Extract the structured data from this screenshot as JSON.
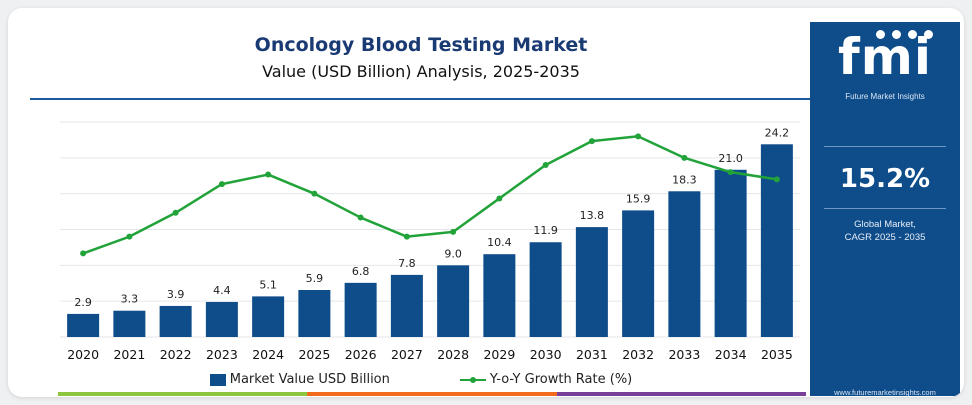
{
  "chart_data": {
    "type": "bar",
    "title": "Oncology Blood Testing Market",
    "subtitle": "Value (USD Billion) Analysis, 2025-2035",
    "categories": [
      "2020",
      "2021",
      "2022",
      "2023",
      "2024",
      "2025",
      "2026",
      "2027",
      "2028",
      "2029",
      "2030",
      "2031",
      "2032",
      "2033",
      "2034",
      "2035"
    ],
    "series": [
      {
        "name": "Market Value USD Billion",
        "type": "bar",
        "values": [
          2.9,
          3.3,
          3.9,
          4.4,
          5.1,
          5.9,
          6.8,
          7.8,
          9.0,
          10.4,
          11.9,
          13.8,
          15.9,
          18.3,
          21.0,
          24.2
        ],
        "labels": [
          "2.9",
          "3.3",
          "3.9",
          "4.4",
          "5.1",
          "5.9",
          "6.8",
          "7.8",
          "9.0",
          "10.4",
          "11.9",
          "13.8",
          "15.9",
          "18.3",
          "21.0",
          "24.2"
        ]
      },
      {
        "name": "Y-o-Y Growth Rate (%)",
        "type": "line",
        "values": [
          13.5,
          14.2,
          15.2,
          16.4,
          16.8,
          16.0,
          15.0,
          14.2,
          14.4,
          15.8,
          17.2,
          18.2,
          18.4,
          17.5,
          16.9,
          16.6
        ]
      }
    ],
    "legend": {
      "position": "bottom",
      "items": [
        "Market Value USD Billion",
        "Y-o-Y Growth Rate (%)"
      ]
    },
    "ylim": [
      0,
      27
    ],
    "y2lim": [
      10,
      19
    ],
    "grid": true,
    "colors": {
      "bar": "#0f4c8a",
      "line": "#22a33a",
      "bar_label": "#222222"
    }
  },
  "sidebar": {
    "logo": "fmi",
    "logo_sub": "Future Market Insights",
    "cagr_value": "15.2%",
    "cagr_label_line1": "Global Market,",
    "cagr_label_line2": "CAGR 2025 - 2035",
    "website": "www.futuremarketinsights.com",
    "background": "#0f4c8a"
  },
  "footer_colors": [
    "#8cc63f",
    "#f26b1d",
    "#7a3f98"
  ]
}
